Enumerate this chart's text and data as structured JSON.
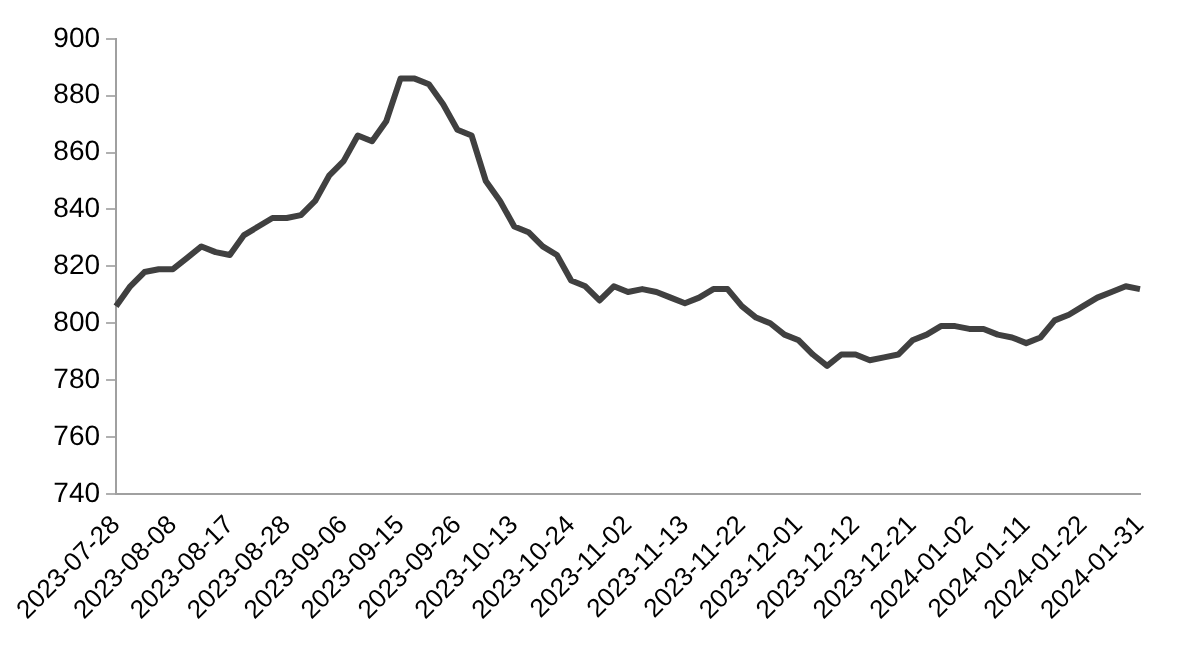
{
  "chart_data": {
    "type": "line",
    "categories": [
      "2023-07-28",
      null,
      null,
      null,
      "2023-08-08",
      null,
      null,
      null,
      "2023-08-17",
      null,
      null,
      null,
      "2023-08-28",
      null,
      null,
      null,
      "2023-09-06",
      null,
      null,
      null,
      "2023-09-15",
      null,
      null,
      null,
      "2023-09-26",
      null,
      null,
      null,
      "2023-10-13",
      null,
      null,
      null,
      "2023-10-24",
      null,
      null,
      null,
      "2023-11-02",
      null,
      null,
      null,
      "2023-11-13",
      null,
      null,
      null,
      "2023-11-22",
      null,
      null,
      null,
      "2023-12-01",
      null,
      null,
      null,
      "2023-12-12",
      null,
      null,
      null,
      "2023-12-21",
      null,
      null,
      null,
      "2024-01-02",
      null,
      null,
      null,
      "2024-01-11",
      null,
      null,
      null,
      "2024-01-22",
      null,
      null,
      null,
      "2024-01-31"
    ],
    "series": [
      {
        "color": "#404040",
        "values": [
          806,
          813,
          818,
          819,
          819,
          823,
          827,
          825,
          824,
          831,
          834,
          837,
          837,
          838,
          843,
          852,
          857,
          866,
          864,
          871,
          886,
          886,
          884,
          877,
          868,
          866,
          850,
          843,
          834,
          832,
          827,
          824,
          815,
          813,
          808,
          813,
          811,
          812,
          811,
          809,
          807,
          809,
          812,
          812,
          806,
          802,
          800,
          796,
          794,
          789,
          785,
          789,
          789,
          787,
          788,
          789,
          794,
          796,
          799,
          799,
          798,
          798,
          796,
          795,
          793,
          795,
          801,
          803,
          806,
          809,
          811,
          813,
          812
        ]
      }
    ],
    "ylim": [
      740,
      900
    ],
    "yticks": [
      740,
      760,
      780,
      800,
      820,
      840,
      860,
      880,
      900
    ],
    "grid": false,
    "legend": false,
    "marker": "none",
    "line_style": "solid"
  }
}
